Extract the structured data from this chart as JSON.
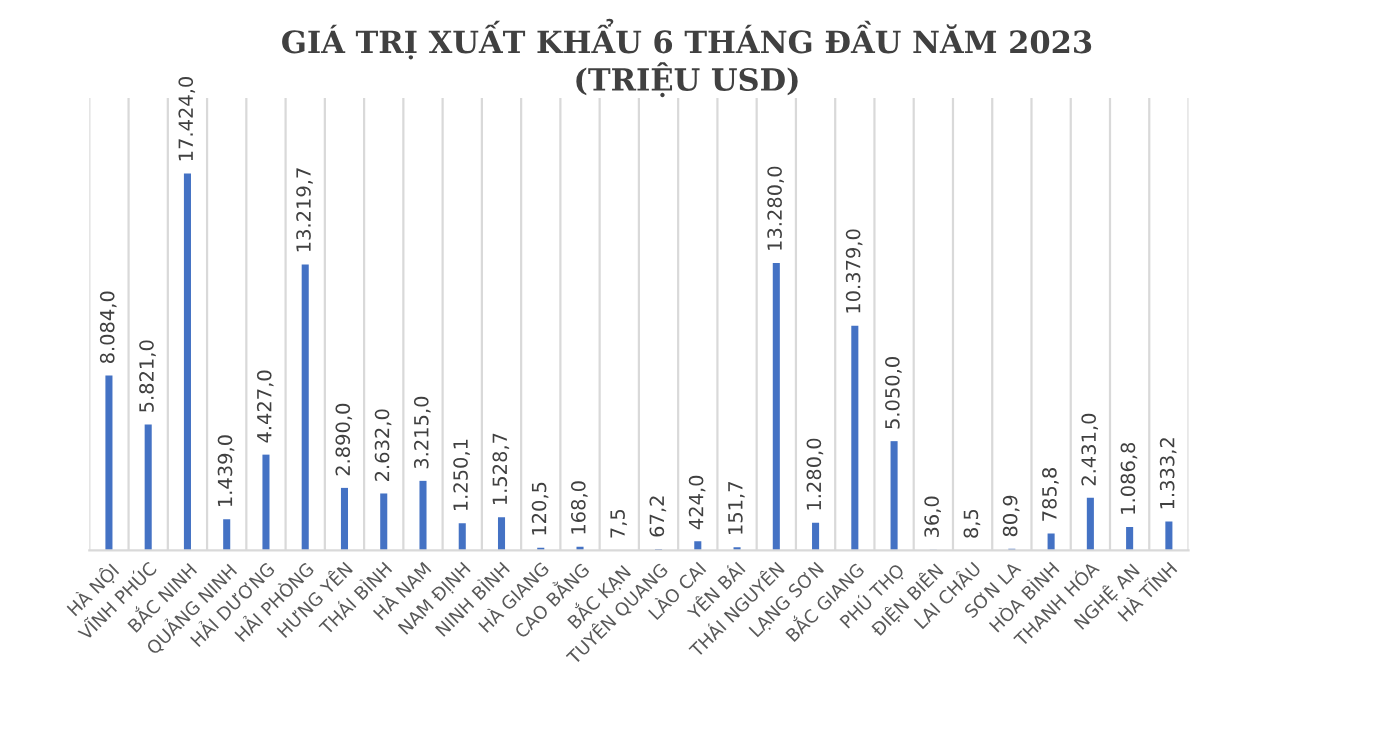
{
  "chart_data": {
    "type": "bar",
    "title": "GIÁ TRỊ XUẤT KHẨU 6 THÁNG ĐẦU NĂM 2023\n(TRIỆU USD)",
    "categories": [
      "HÀ NỘI",
      "VĨNH PHÚC",
      "BẮC NINH",
      "QUẢNG NINH",
      "HẢI DƯƠNG",
      "HẢI PHÒNG",
      "HƯNG YÊN",
      "THÁI BÌNH",
      "HÀ NAM",
      "NAM ĐỊNH",
      "NINH BÌNH",
      "HÀ GIANG",
      "CAO BẰNG",
      "BẮC KẠN",
      "TUYÊN QUANG",
      "LÀO CAI",
      "YÊN BÁI",
      "THÁI NGUYÊN",
      "LẠNG SƠN",
      "BẮC GIANG",
      "PHÚ THỌ",
      "ĐIỆN BIÊN",
      "LAI CHÂU",
      "SƠN LA",
      "HÒA BÌNH",
      "THANH HÓA",
      "NGHỆ AN",
      "HÀ TĨNH"
    ],
    "values": [
      8084.0,
      5821.0,
      17424.0,
      1439.0,
      4427.0,
      13219.7,
      2890.0,
      2632.0,
      3215.0,
      1250.1,
      1528.7,
      120.5,
      168.0,
      7.5,
      67.2,
      424.0,
      151.7,
      13280.0,
      1280.0,
      10379.0,
      5050.0,
      36.0,
      8.5,
      80.9,
      785.8,
      2431.0,
      1086.8,
      1333.2
    ],
    "value_labels": [
      "8.084,0",
      "5.821,0",
      "17.424,0",
      "1.439,0",
      "4.427,0",
      "13.219,7",
      "2.890,0",
      "2.632,0",
      "3.215,0",
      "1.250,1",
      "1.528,7",
      "120,5",
      "168,0",
      "7,5",
      "67,2",
      "424,0",
      "151,7",
      "13.280,0",
      "1.280,0",
      "10.379,0",
      "5.050,0",
      "36,0",
      "8,5",
      "80,9",
      "785,8",
      "2.431,0",
      "1.086,8",
      "1.333,2"
    ],
    "color": "#4472c4",
    "grid": "x"
  }
}
